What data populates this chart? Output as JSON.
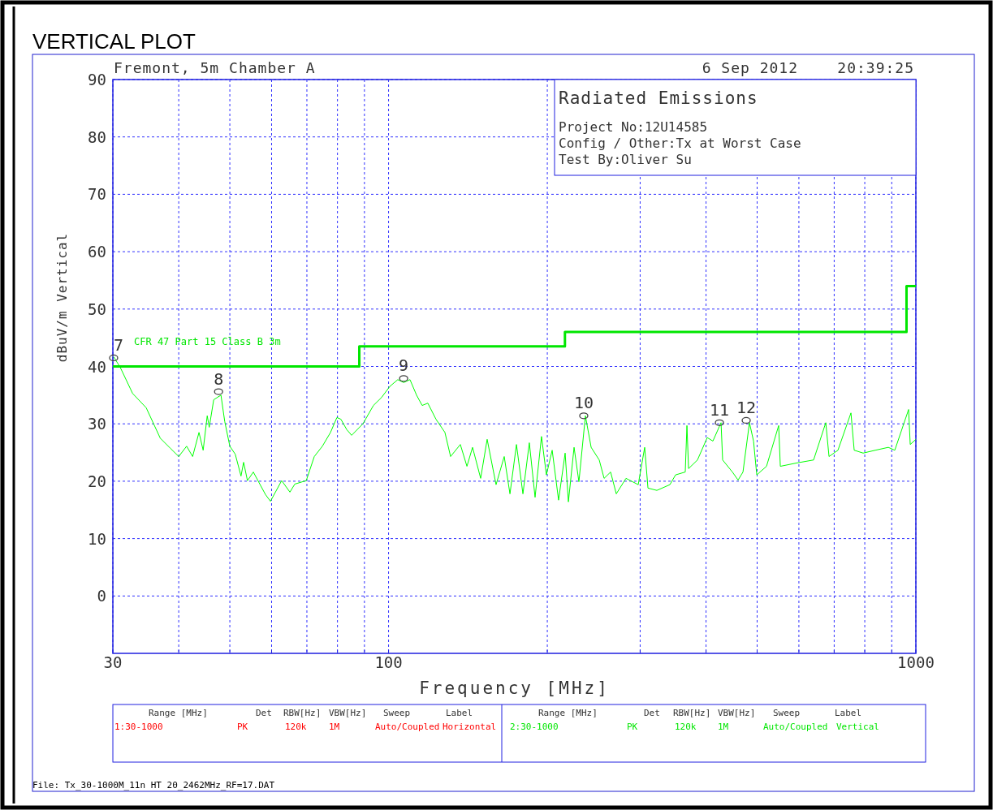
{
  "chart_data": {
    "type": "line",
    "title": "VERTICAL PLOT",
    "xlabel": "Frequency [MHz]",
    "ylabel": "dBuV/m Vertical",
    "log": "x",
    "grid": true,
    "xlim": [
      30,
      1000
    ],
    "ylim": [
      -10,
      90
    ],
    "xticks": [
      30,
      {
        "value": 40,
        "label": null
      },
      {
        "value": 50,
        "label": null
      },
      {
        "value": 60,
        "label": null
      },
      {
        "value": 70,
        "label": null
      },
      {
        "value": 80,
        "label": null
      },
      {
        "value": 90,
        "label": null
      },
      100,
      {
        "value": 200,
        "label": null
      },
      {
        "value": 300,
        "label": null
      },
      {
        "value": 400,
        "label": null
      },
      {
        "value": 500,
        "label": null
      },
      {
        "value": 600,
        "label": null
      },
      {
        "value": 700,
        "label": null
      },
      {
        "value": 800,
        "label": null
      },
      {
        "value": 900,
        "label": null
      },
      1000
    ],
    "yticks": [
      0,
      10,
      20,
      30,
      40,
      50,
      60,
      70,
      80,
      90
    ],
    "series": [
      {
        "color": "#00ff00",
        "x": [
          30.1,
          31.0,
          32.7,
          34.7,
          36.9,
          38.6,
          40.0,
          41.4,
          42.5,
          43.7,
          44.5,
          45.3,
          45.7,
          46.6,
          48.1,
          48.9,
          50.0,
          51.2,
          52.5,
          53.1,
          54.0,
          55.4,
          58.4,
          59.7,
          62.7,
          65.0,
          66.4,
          69.8,
          72.3,
          74.9,
          77.6,
          79.8,
          81.2,
          83.3,
          85.1,
          89.4,
          93.6,
          97.0,
          100.5,
          104.1,
          106.8,
          109.8,
          113.0,
          115.8,
          118.7,
          123.0,
          127.9,
          131.1,
          136.8,
          140.8,
          144.3,
          149.5,
          153.8,
          159.9,
          165.7,
          169.9,
          174.8,
          179.8,
          184.9,
          189.6,
          195.0,
          199.2,
          204.3,
          210.1,
          216.2,
          219.3,
          224.8,
          229.6,
          236.2,
          242.2,
          250.9,
          256.3,
          263.7,
          270.3,
          282.0,
          297.5,
          306.0,
          310.4,
          322.7,
          341.6,
          350.2,
          365.3,
          368.0,
          370.6,
          385.3,
          402.1,
          412.2,
          427.1,
          430.1,
          448.8,
          460.1,
          470.0,
          483.5,
          492.2,
          499.2,
          520.9,
          549.3,
          553.3,
          596.0,
          639.8,
          674.8,
          684.4,
          711.6,
          753.2,
          763.9,
          794.3,
          837.7,
          886.6,
          912.1,
          968.8,
          975.7,
          1000
        ],
        "values": [
          41.7,
          39.8,
          35.3,
          32.8,
          27.5,
          25.7,
          24.3,
          26.1,
          24.3,
          28.5,
          25.4,
          31.4,
          29.4,
          34.2,
          35.0,
          30.4,
          26.1,
          24.7,
          20.9,
          23.3,
          20.1,
          21.6,
          17.7,
          16.5,
          20.1,
          18.1,
          19.5,
          20.1,
          24.3,
          26.1,
          28.5,
          31.1,
          30.8,
          29.0,
          28.0,
          30.0,
          33.2,
          34.6,
          36.5,
          37.7,
          37.2,
          37.7,
          35.0,
          33.2,
          33.6,
          30.8,
          28.5,
          24.3,
          26.4,
          22.6,
          25.9,
          20.5,
          27.3,
          19.4,
          24.3,
          17.8,
          26.4,
          17.8,
          26.7,
          17.2,
          27.8,
          21.1,
          25.4,
          16.7,
          24.9,
          16.4,
          25.9,
          19.9,
          31.4,
          25.9,
          23.7,
          20.5,
          21.6,
          17.8,
          20.5,
          19.4,
          25.9,
          18.8,
          18.4,
          19.4,
          21.1,
          21.6,
          29.7,
          22.2,
          23.7,
          27.6,
          27.0,
          30.2,
          23.7,
          21.6,
          20.2,
          21.6,
          30.2,
          27.0,
          21.1,
          22.6,
          29.7,
          22.6,
          23.2,
          23.7,
          30.2,
          24.3,
          25.4,
          31.9,
          25.4,
          24.9,
          25.4,
          25.9,
          25.4,
          32.5,
          26.4,
          27.3
        ]
      },
      {
        "type": "step",
        "name": "CFR 47 Part 15  Class B 3m",
        "color": "#00e600",
        "x": [
          30,
          88,
          216,
          960,
          1000
        ],
        "values": [
          40,
          43.5,
          46,
          54,
          54
        ]
      },
      {
        "type": "scatter",
        "color": "#404040",
        "marker": "circle",
        "x": [
          30.1,
          47.6,
          106.8,
          234.5,
          424.1,
          476.7
        ],
        "values": [
          41.5,
          35.6,
          37.9,
          31.4,
          30.2,
          30.6
        ]
      }
    ],
    "annotations": [
      "Fremont, 5m Chamber A",
      "6 Sep 2012",
      "20:39:25",
      "Radiated Emissions",
      "Project No:12U14585",
      "Config / Other:Tx at Worst Case",
      "Test By:Oliver Su",
      "Range [MHz]",
      "Det",
      "RBW[Hz]",
      "VBW[Hz]",
      "Sweep",
      "Label",
      "1:30-1000",
      "PK",
      "120k",
      "1M",
      "Auto/Coupled",
      "Horizontal",
      "Range [MHz]",
      "Det",
      "RBW[Hz]",
      "VBW[Hz]",
      "Sweep",
      "Label",
      "2:30-1000",
      "PK",
      "120k",
      "1M",
      "Auto/Coupled",
      "Vertical",
      "File: Tx_30-1000M_11n HT 20_2462MHz_RF=17.DAT",
      {
        "text": "7",
        "x": 30.1,
        "y": 41.5
      },
      {
        "text": "8",
        "x": 47.6,
        "y": 35.6
      },
      {
        "text": "9",
        "x": 106.8,
        "y": 37.9
      },
      {
        "text": "10",
        "x": 234.5,
        "y": 31.4
      },
      {
        "text": "11",
        "x": 424.1,
        "y": 30.2
      },
      {
        "text": "12",
        "x": 476.7,
        "y": 30.6
      }
    ]
  }
}
